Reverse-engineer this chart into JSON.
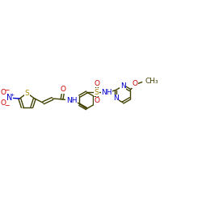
{
  "bg_color": "#ffffff",
  "bond_color": "#404000",
  "atom_colors": {
    "O": "#cc0000",
    "N": "#0000cc",
    "S": "#aa8800",
    "C": "#404000"
  },
  "lw": 1.0,
  "fs": 6.5,
  "fig_w": 2.5,
  "fig_h": 2.5,
  "dpi": 100,
  "xlim": [
    0,
    14
  ],
  "ylim": [
    0,
    10
  ]
}
